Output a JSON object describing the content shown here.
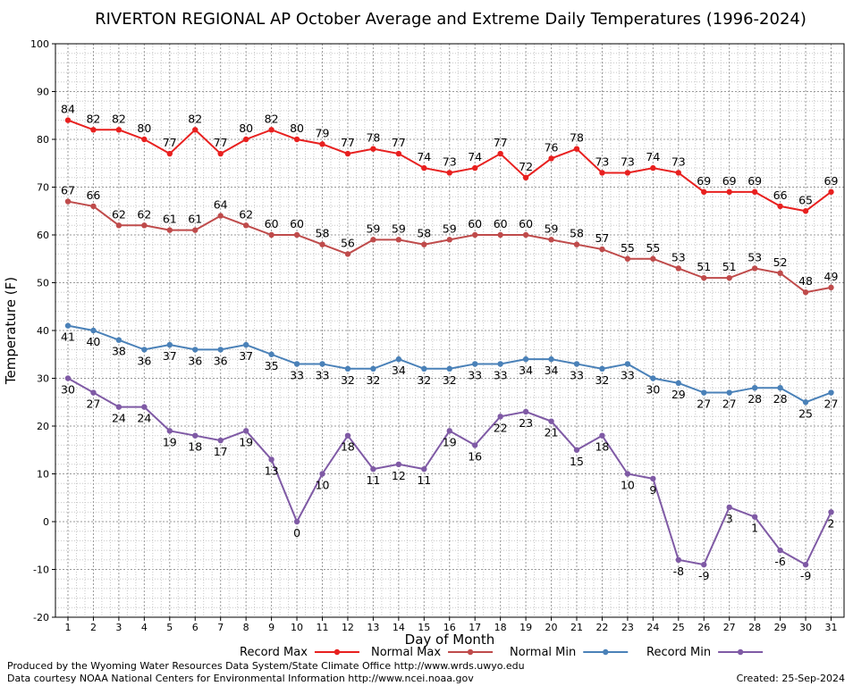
{
  "chart_data": {
    "type": "line",
    "title": "RIVERTON REGIONAL AP October Average and Extreme Daily Temperatures (1996-2024)",
    "xlabel": "Day of Month",
    "ylabel": "Temperature (F)",
    "ylim": [
      -20,
      100
    ],
    "yticks": [
      -20,
      -10,
      0,
      10,
      20,
      30,
      40,
      50,
      60,
      70,
      80,
      90,
      100
    ],
    "grid": true,
    "legend_position": "bottom",
    "x": [
      1,
      2,
      3,
      4,
      5,
      6,
      7,
      8,
      9,
      10,
      11,
      12,
      13,
      14,
      15,
      16,
      17,
      18,
      19,
      20,
      21,
      22,
      23,
      24,
      25,
      26,
      27,
      28,
      29,
      30,
      31
    ],
    "series": [
      {
        "name": "Record Max",
        "color": "#e8201f",
        "values": [
          84,
          82,
          82,
          80,
          77,
          82,
          77,
          80,
          82,
          80,
          79,
          77,
          78,
          77,
          74,
          73,
          74,
          77,
          72,
          76,
          78,
          73,
          73,
          74,
          73,
          69,
          69,
          69,
          66,
          65,
          69
        ]
      },
      {
        "name": "Normal Max",
        "color": "#bf4b4b",
        "values": [
          67,
          66,
          62,
          62,
          61,
          61,
          64,
          62,
          60,
          60,
          58,
          56,
          59,
          59,
          58,
          59,
          60,
          60,
          60,
          59,
          58,
          57,
          55,
          55,
          53,
          51,
          51,
          53,
          52,
          48,
          49
        ]
      },
      {
        "name": "Normal Min",
        "color": "#4a81b8",
        "values": [
          41,
          40,
          38,
          36,
          37,
          36,
          36,
          37,
          35,
          33,
          33,
          32,
          32,
          34,
          32,
          32,
          33,
          33,
          34,
          34,
          33,
          32,
          33,
          30,
          29,
          27,
          27,
          28,
          28,
          25,
          27
        ]
      },
      {
        "name": "Record Min",
        "color": "#7f5aa5",
        "values": [
          30,
          27,
          24,
          24,
          19,
          18,
          17,
          19,
          13,
          0,
          10,
          18,
          11,
          12,
          11,
          19,
          16,
          22,
          23,
          21,
          15,
          18,
          10,
          9,
          -8,
          -9,
          3,
          1,
          -6,
          -9,
          2
        ]
      }
    ]
  },
  "footer": {
    "produced_by": "Produced by the Wyoming Water Resources Data System/State Climate Office http://www.wrds.uwyo.edu",
    "courtesy": "Data courtesy NOAA National Centers for Environmental Information http://www.ncei.noaa.gov",
    "created": "Created: 25-Sep-2024"
  }
}
